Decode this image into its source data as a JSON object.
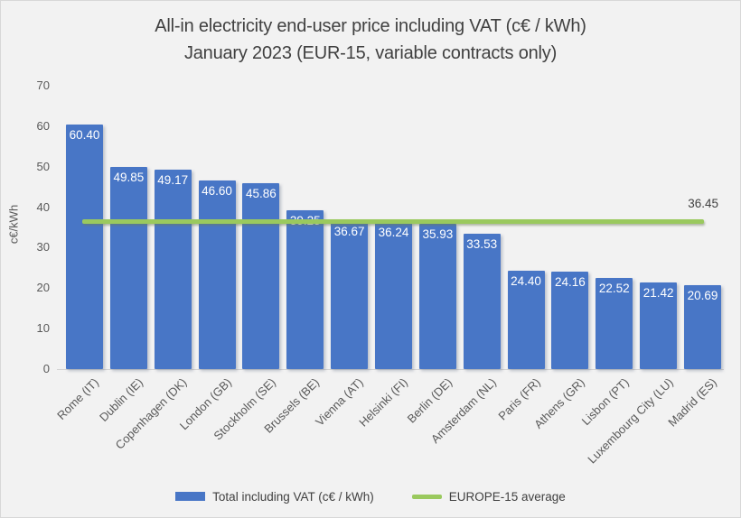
{
  "title": {
    "line1": "All-in electricity end-user price including VAT (c€ / kWh)",
    "line2": "January 2023 (EUR-15, variable contracts only)"
  },
  "chart_data": {
    "type": "bar",
    "categories": [
      "Rome (IT)",
      "Dublin (IE)",
      "Copenhagen (DK)",
      "London (GB)",
      "Stockholm (SE)",
      "Brussels (BE)",
      "Vienna (AT)",
      "Helsinki (FI)",
      "Berlin (DE)",
      "Amsterdam (NL)",
      "Paris (FR)",
      "Athens (GR)",
      "Lisbon (PT)",
      "Luxembourg City (LU)",
      "Madrid (ES)"
    ],
    "values": [
      60.4,
      49.85,
      49.17,
      46.6,
      45.86,
      39.25,
      36.67,
      36.24,
      35.93,
      33.53,
      24.4,
      24.16,
      22.52,
      21.42,
      20.69
    ],
    "value_label_decimals": 2,
    "series_name": "Total including VAT (c€ / kWh)",
    "average_line": {
      "label": "EUROPE-15 average",
      "value": 36.45,
      "value_label": "36.45"
    },
    "ylabel": "c€/kWh",
    "xlabel": "",
    "yticks": [
      0,
      10,
      20,
      30,
      40,
      50,
      60,
      70
    ],
    "ylim": [
      0,
      70
    ],
    "grid": false,
    "legend_position": "bottom",
    "colors": {
      "bar": "#4876c6",
      "bar_label_text": "#ffffff",
      "average_line": "#9ac95e",
      "axis_text": "#595959",
      "title_text": "#404040",
      "background": "#f2f2f2"
    }
  },
  "legend": {
    "items": [
      {
        "label": "Total including VAT (c€ / kWh)",
        "swatch": "bar"
      },
      {
        "label": "EUROPE-15 average",
        "swatch": "line"
      }
    ]
  }
}
